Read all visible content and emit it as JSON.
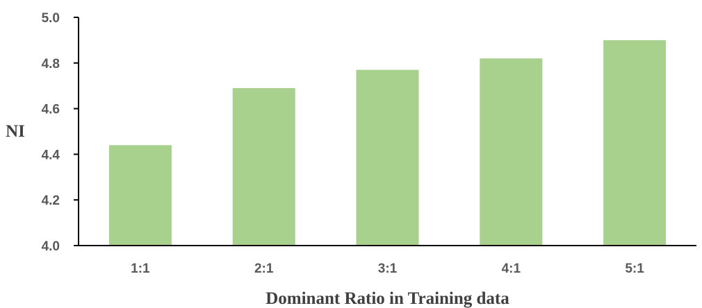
{
  "chart_data": {
    "type": "bar",
    "categories": [
      "1:1",
      "2:1",
      "3:1",
      "4:1",
      "5:1"
    ],
    "values": [
      4.44,
      4.69,
      4.77,
      4.82,
      4.9
    ],
    "xlabel": "Dominant Ratio in Training data",
    "ylabel": "NI",
    "ylim": [
      4.0,
      5.0
    ],
    "yticks": [
      "4.0",
      "4.2",
      "4.4",
      "4.6",
      "4.8",
      "5.0"
    ],
    "grid": false,
    "legend": "none",
    "bar_color": "#a9d18e"
  }
}
